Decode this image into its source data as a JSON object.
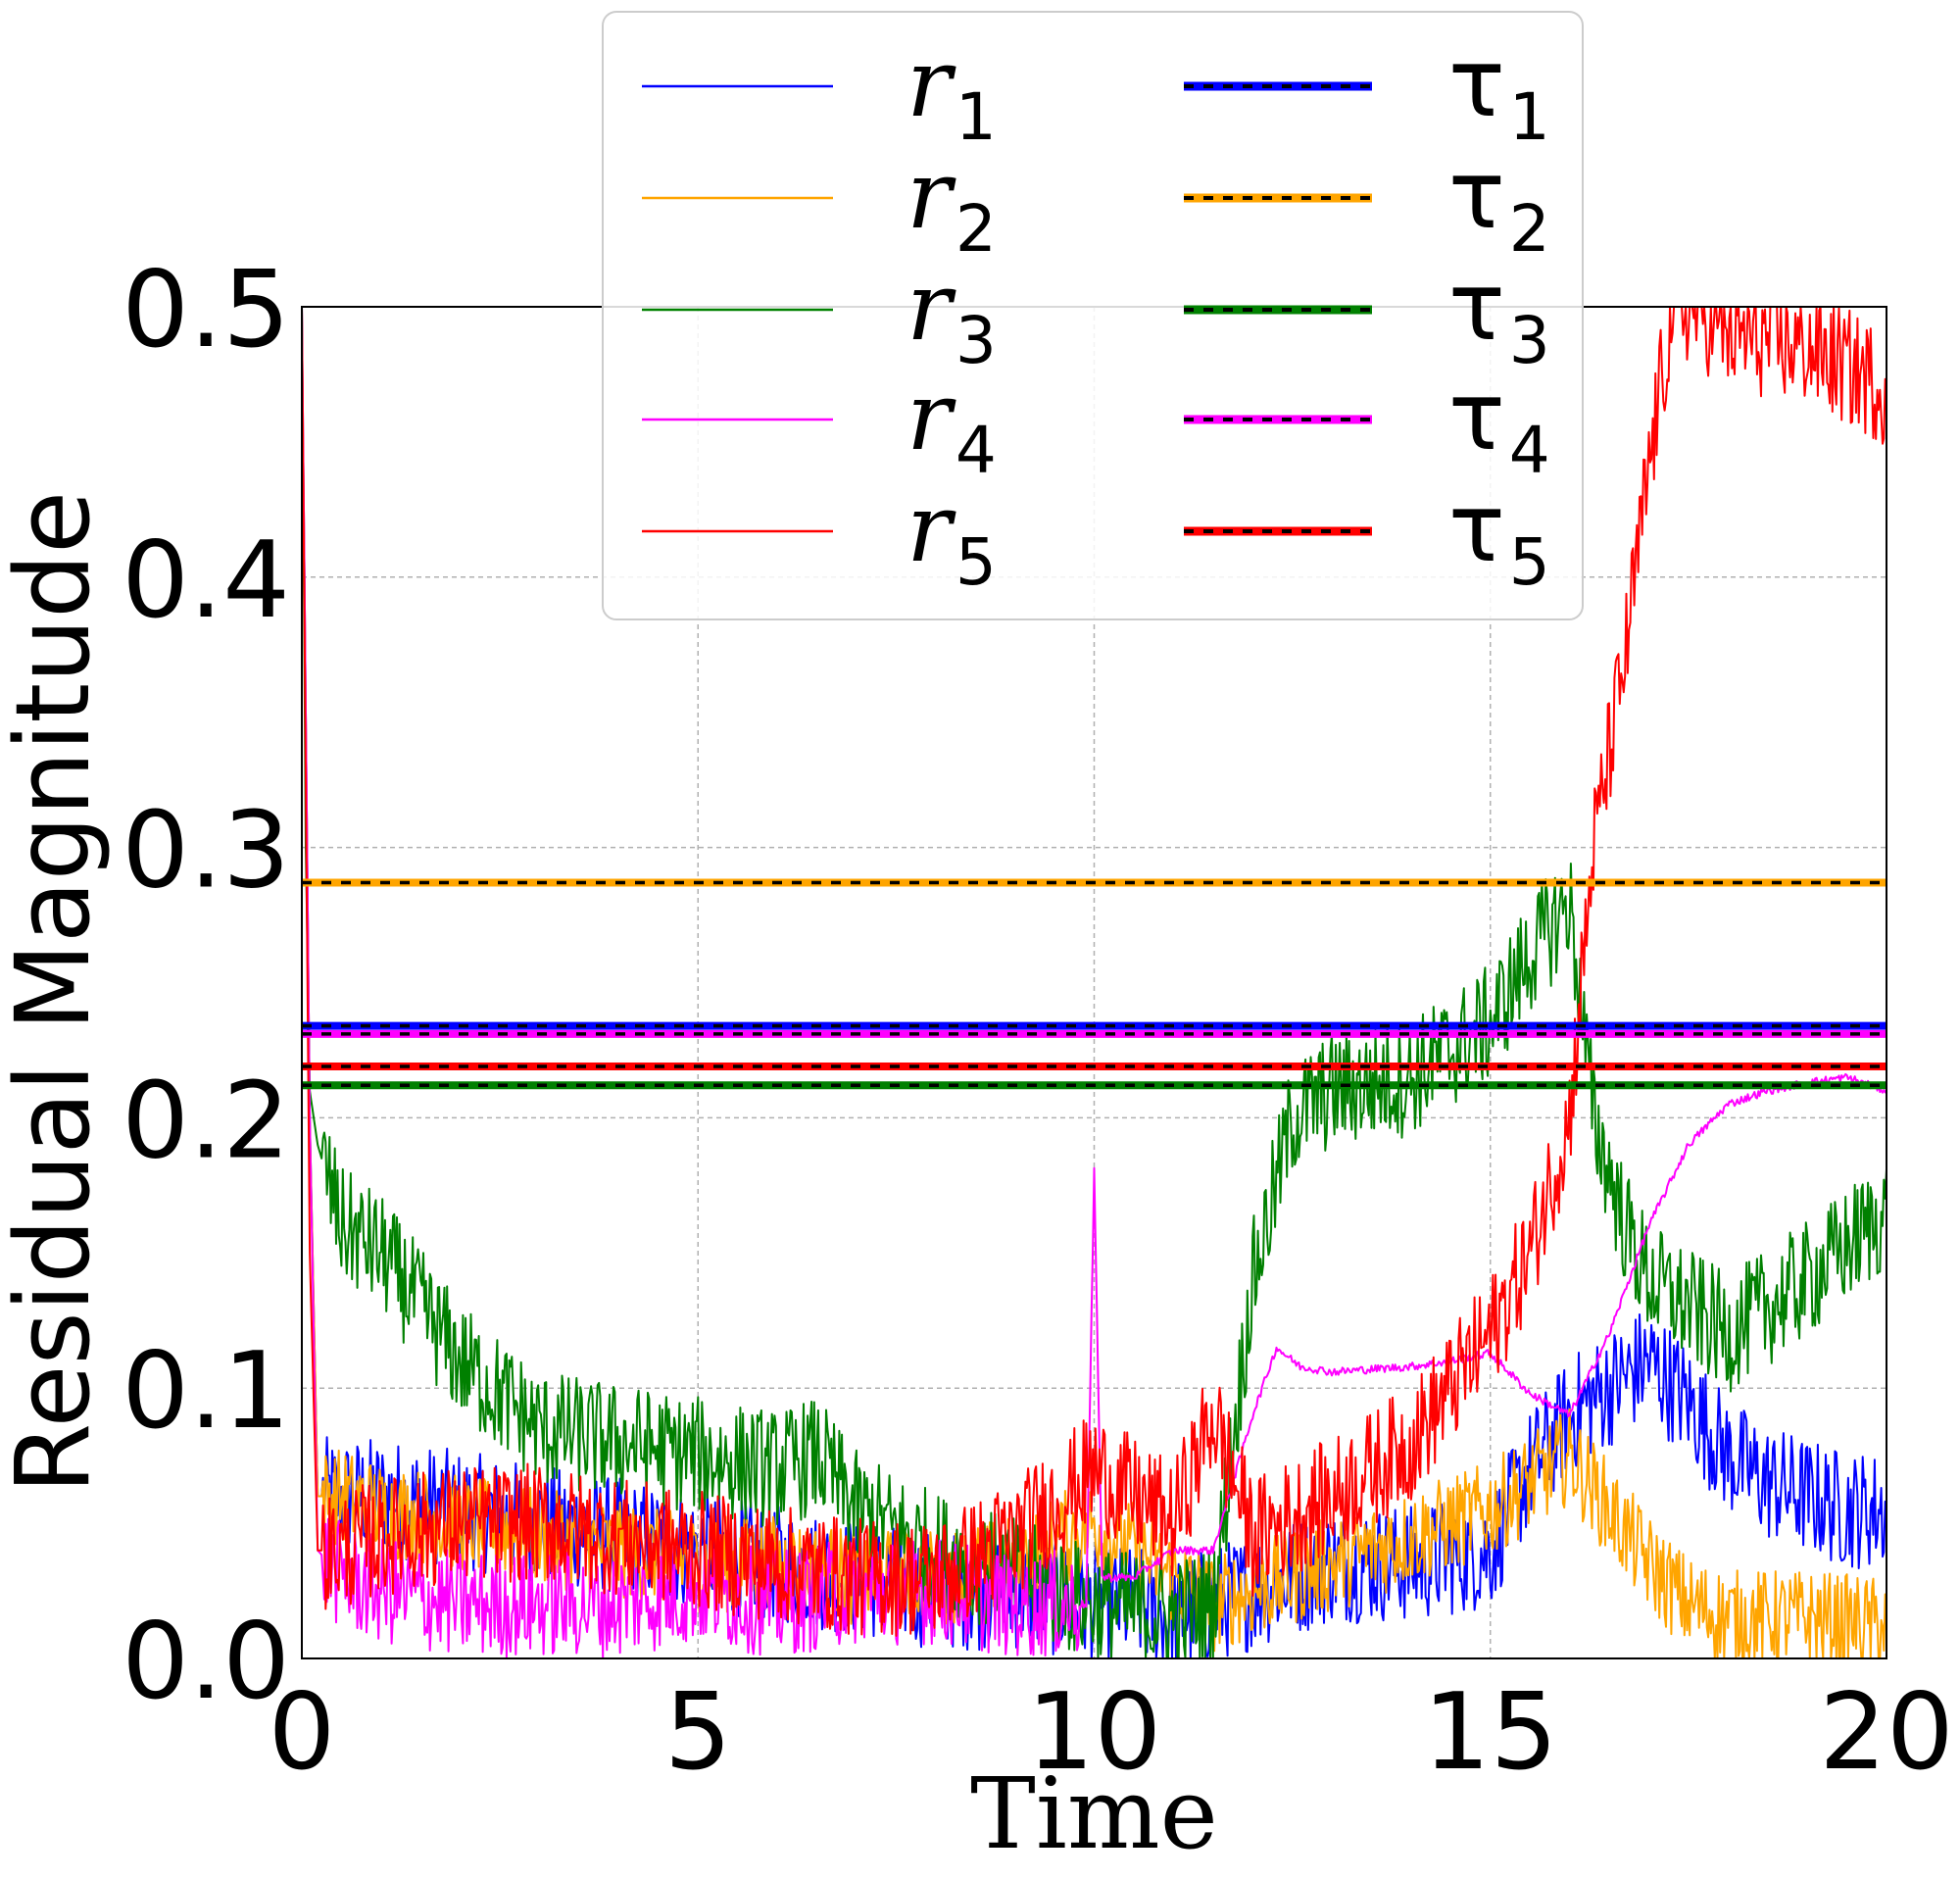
{
  "chart_data": {
    "type": "line",
    "xlabel": "Time",
    "ylabel": "Residual Magnitude",
    "xlim": [
      0,
      20
    ],
    "ylim": [
      0,
      0.5
    ],
    "xticks": [
      "0",
      "5",
      "10",
      "15",
      "20"
    ],
    "yticks": [
      "0.0",
      "0.1",
      "0.2",
      "0.3",
      "0.4",
      "0.5"
    ],
    "grid": true,
    "legend_position": "top-center",
    "legend_columns": 2,
    "series": [
      {
        "name": "r",
        "sub": "1",
        "color": "#0000ff",
        "kind": "residual",
        "x": [
          0,
          0.1,
          0.2,
          0.5,
          1,
          2,
          3,
          4,
          5,
          6,
          7,
          8,
          9,
          10,
          10.5,
          11,
          11.5,
          12,
          12.5,
          13,
          14,
          15,
          15.5,
          16,
          16.5,
          17,
          17.5,
          18,
          18.5,
          19,
          19.5,
          20
        ],
        "y": [
          0.5,
          0.2,
          0.06,
          0.06,
          0.06,
          0.055,
          0.05,
          0.045,
          0.04,
          0.035,
          0.03,
          0.025,
          0.025,
          0.02,
          0.02,
          0.015,
          0.02,
          0.025,
          0.03,
          0.035,
          0.035,
          0.04,
          0.07,
          0.09,
          0.1,
          0.11,
          0.095,
          0.075,
          0.065,
          0.06,
          0.055,
          0.055
        ],
        "noise": 0.022
      },
      {
        "name": "r",
        "sub": "2",
        "color": "#ffa500",
        "kind": "residual",
        "x": [
          0,
          0.1,
          0.2,
          0.5,
          1,
          2,
          3,
          4,
          5,
          6,
          7,
          8,
          9,
          10,
          10.5,
          11,
          11.5,
          12,
          13,
          14,
          15,
          15.5,
          16,
          16.5,
          17,
          17.5,
          18,
          19,
          20
        ],
        "y": [
          0.5,
          0.2,
          0.06,
          0.06,
          0.055,
          0.05,
          0.045,
          0.04,
          0.035,
          0.035,
          0.03,
          0.03,
          0.035,
          0.05,
          0.04,
          0.03,
          0.02,
          0.025,
          0.035,
          0.045,
          0.055,
          0.065,
          0.075,
          0.055,
          0.035,
          0.02,
          0.015,
          0.015,
          0.012
        ],
        "noise": 0.018
      },
      {
        "name": "r",
        "sub": "3",
        "color": "#008000",
        "kind": "residual",
        "x": [
          0,
          0.05,
          0.1,
          0.2,
          0.5,
          1,
          2,
          3,
          4,
          5,
          6,
          6.5,
          7,
          8,
          9,
          10,
          11,
          11.5,
          12,
          12.5,
          13,
          14,
          15,
          15.5,
          16,
          16.3,
          16.7,
          17,
          18,
          19,
          20
        ],
        "y": [
          0.5,
          0.3,
          0.21,
          0.19,
          0.16,
          0.15,
          0.11,
          0.085,
          0.08,
          0.075,
          0.07,
          0.075,
          0.055,
          0.04,
          0.03,
          0.02,
          0.015,
          0.02,
          0.14,
          0.2,
          0.21,
          0.215,
          0.235,
          0.26,
          0.28,
          0.2,
          0.16,
          0.14,
          0.12,
          0.14,
          0.165
        ],
        "noise": 0.022
      },
      {
        "name": "r",
        "sub": "4",
        "color": "#ff00ff",
        "kind": "residual",
        "x": [
          0,
          0.1,
          0.2,
          0.5,
          1,
          2,
          3,
          4,
          5,
          6,
          7,
          8,
          9,
          9.9,
          10,
          10.1,
          10.5,
          11,
          11.5,
          12,
          12.3,
          12.6,
          13,
          14,
          14.5,
          15,
          15.5,
          16,
          16.5,
          17,
          17.5,
          18,
          18.5,
          19,
          19.5,
          20
        ],
        "y": [
          0.5,
          0.2,
          0.04,
          0.03,
          0.025,
          0.02,
          0.02,
          0.02,
          0.025,
          0.02,
          0.025,
          0.025,
          0.02,
          0.02,
          0.18,
          0.03,
          0.03,
          0.04,
          0.04,
          0.09,
          0.115,
          0.108,
          0.106,
          0.108,
          0.11,
          0.113,
          0.098,
          0.09,
          0.12,
          0.16,
          0.19,
          0.205,
          0.21,
          0.213,
          0.215,
          0.21
        ],
        "noise_x_max": 9.8,
        "noise": 0.02
      },
      {
        "name": "r",
        "sub": "5",
        "color": "#ff0000",
        "kind": "residual",
        "x": [
          0,
          0.1,
          0.2,
          0.5,
          1,
          2,
          3,
          4,
          5,
          6,
          7,
          8,
          9,
          10,
          11,
          11.5,
          12,
          13,
          14,
          15,
          15.5,
          16,
          16.3,
          16.7,
          17,
          17.3,
          17.6,
          18,
          19,
          20
        ],
        "y": [
          0.5,
          0.15,
          0.04,
          0.04,
          0.045,
          0.05,
          0.05,
          0.045,
          0.04,
          0.035,
          0.03,
          0.03,
          0.045,
          0.07,
          0.05,
          0.09,
          0.045,
          0.06,
          0.08,
          0.12,
          0.15,
          0.2,
          0.3,
          0.37,
          0.44,
          0.5,
          0.5,
          0.49,
          0.485,
          0.47
        ],
        "noise": 0.022
      },
      {
        "name": "τ",
        "sub": "1",
        "color": "#0000ff",
        "kind": "threshold",
        "value": 0.234
      },
      {
        "name": "τ",
        "sub": "2",
        "color": "#ffa500",
        "kind": "threshold",
        "value": 0.287
      },
      {
        "name": "τ",
        "sub": "3",
        "color": "#008000",
        "kind": "threshold",
        "value": 0.212
      },
      {
        "name": "τ",
        "sub": "4",
        "color": "#ff00ff",
        "kind": "threshold",
        "value": 0.231
      },
      {
        "name": "τ",
        "sub": "5",
        "color": "#ff0000",
        "kind": "threshold",
        "value": 0.219
      }
    ]
  }
}
